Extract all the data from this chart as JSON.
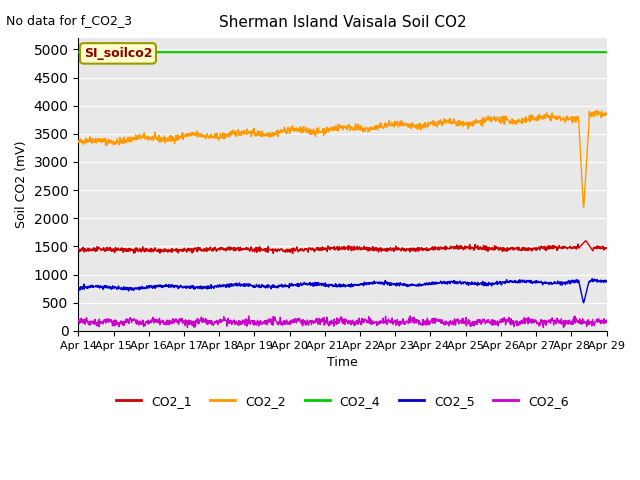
{
  "title": "Sherman Island Vaisala Soil CO2",
  "no_data_text": "No data for f_CO2_3",
  "ylabel": "Soil CO2 (mV)",
  "xlabel": "Time",
  "ylim": [
    0,
    5200
  ],
  "yticks": [
    0,
    500,
    1000,
    1500,
    2000,
    2500,
    3000,
    3500,
    4000,
    4500,
    5000
  ],
  "xtick_labels": [
    "Apr 14",
    "Apr 15",
    "Apr 16",
    "Apr 17",
    "Apr 18",
    "Apr 19",
    "Apr 20",
    "Apr 21",
    "Apr 22",
    "Apr 23",
    "Apr 24",
    "Apr 25",
    "Apr 26",
    "Apr 27",
    "Apr 28",
    "Apr 29"
  ],
  "bg_color": "#e8e8e8",
  "legend_label": "SI_soilco2",
  "legend_box_color": "#ffffcc",
  "legend_box_edge": "#999900",
  "series_colors": {
    "CO2_1": "#cc0000",
    "CO2_2": "#ff9900",
    "CO2_4": "#00cc00",
    "CO2_5": "#0000cc",
    "CO2_6": "#cc00cc"
  }
}
